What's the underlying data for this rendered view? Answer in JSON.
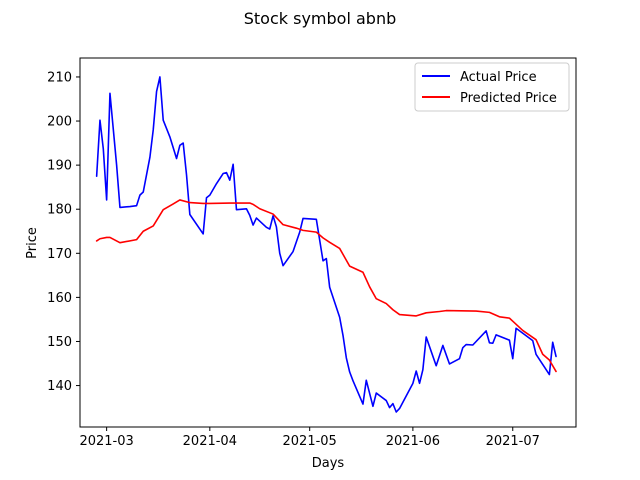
{
  "chart_data": {
    "type": "line",
    "title": "Stock symbol abnb",
    "xlabel": "Days",
    "ylabel": "Price",
    "xlim": [
      "2021-02-21",
      "2021-07-20"
    ],
    "ylim": [
      130.6,
      214.3
    ],
    "x_ticks": [
      "2021-03",
      "2021-04",
      "2021-05",
      "2021-06",
      "2021-07"
    ],
    "y_ticks": [
      140,
      150,
      160,
      170,
      180,
      190,
      200,
      210
    ],
    "grid": false,
    "legend_position": "top-right",
    "series": [
      {
        "name": "Actual Price",
        "color": "#0000ff",
        "points": [
          [
            "2021-02-26",
            187.5
          ],
          [
            "2021-02-27",
            200.2
          ],
          [
            "2021-02-28",
            193.7
          ],
          [
            "2021-03-01",
            182.1
          ],
          [
            "2021-03-02",
            206.3
          ],
          [
            "2021-03-04",
            190.0
          ],
          [
            "2021-03-05",
            180.4
          ],
          [
            "2021-03-08",
            180.6
          ],
          [
            "2021-03-10",
            180.8
          ],
          [
            "2021-03-11",
            183.2
          ],
          [
            "2021-03-12",
            183.9
          ],
          [
            "2021-03-14",
            191.8
          ],
          [
            "2021-03-15",
            198.0
          ],
          [
            "2021-03-16",
            206.7
          ],
          [
            "2021-03-17",
            210.0
          ],
          [
            "2021-03-18",
            200.2
          ],
          [
            "2021-03-20",
            196.4
          ],
          [
            "2021-03-22",
            191.5
          ],
          [
            "2021-03-23",
            194.5
          ],
          [
            "2021-03-24",
            195.0
          ],
          [
            "2021-03-25",
            187.8
          ],
          [
            "2021-03-26",
            178.8
          ],
          [
            "2021-03-30",
            174.4
          ],
          [
            "2021-03-31",
            182.6
          ],
          [
            "2021-04-01",
            183.2
          ],
          [
            "2021-04-03",
            185.8
          ],
          [
            "2021-04-05",
            188.1
          ],
          [
            "2021-04-06",
            188.3
          ],
          [
            "2021-04-07",
            186.6
          ],
          [
            "2021-04-08",
            190.2
          ],
          [
            "2021-04-09",
            179.9
          ],
          [
            "2021-04-12",
            180.1
          ],
          [
            "2021-04-13",
            178.6
          ],
          [
            "2021-04-14",
            176.4
          ],
          [
            "2021-04-15",
            178.0
          ],
          [
            "2021-04-18",
            175.9
          ],
          [
            "2021-04-19",
            175.5
          ],
          [
            "2021-04-20",
            178.5
          ],
          [
            "2021-04-21",
            176.0
          ],
          [
            "2021-04-22",
            170.0
          ],
          [
            "2021-04-23",
            167.2
          ],
          [
            "2021-04-26",
            170.4
          ],
          [
            "2021-04-28",
            174.8
          ],
          [
            "2021-04-29",
            177.9
          ],
          [
            "2021-05-03",
            177.7
          ],
          [
            "2021-05-05",
            168.3
          ],
          [
            "2021-05-06",
            168.8
          ],
          [
            "2021-05-07",
            162.3
          ],
          [
            "2021-05-10",
            155.5
          ],
          [
            "2021-05-11",
            151.4
          ],
          [
            "2021-05-12",
            146.3
          ],
          [
            "2021-05-13",
            143.1
          ],
          [
            "2021-05-14",
            141.1
          ],
          [
            "2021-05-17",
            135.8
          ],
          [
            "2021-05-18",
            141.2
          ],
          [
            "2021-05-20",
            135.3
          ],
          [
            "2021-05-21",
            138.3
          ],
          [
            "2021-05-24",
            136.6
          ],
          [
            "2021-05-25",
            135.0
          ],
          [
            "2021-05-26",
            135.9
          ],
          [
            "2021-05-27",
            134.0
          ],
          [
            "2021-05-28",
            134.8
          ],
          [
            "2021-06-01",
            140.5
          ],
          [
            "2021-06-02",
            143.3
          ],
          [
            "2021-06-03",
            140.5
          ],
          [
            "2021-06-04",
            143.6
          ],
          [
            "2021-06-05",
            151.0
          ],
          [
            "2021-06-08",
            144.5
          ],
          [
            "2021-06-10",
            149.1
          ],
          [
            "2021-06-12",
            144.9
          ],
          [
            "2021-06-15",
            146.1
          ],
          [
            "2021-06-16",
            148.6
          ],
          [
            "2021-06-17",
            149.3
          ],
          [
            "2021-06-19",
            149.2
          ],
          [
            "2021-06-23",
            152.4
          ],
          [
            "2021-06-24",
            149.7
          ],
          [
            "2021-06-25",
            149.6
          ],
          [
            "2021-06-26",
            151.5
          ],
          [
            "2021-06-30",
            150.3
          ],
          [
            "2021-07-01",
            146.1
          ],
          [
            "2021-07-02",
            153.0
          ],
          [
            "2021-07-07",
            150.2
          ],
          [
            "2021-07-08",
            147.1
          ],
          [
            "2021-07-12",
            142.5
          ],
          [
            "2021-07-13",
            149.8
          ],
          [
            "2021-07-14",
            146.6
          ]
        ]
      },
      {
        "name": "Predicted Price",
        "color": "#ff0000",
        "points": [
          [
            "2021-02-26",
            172.8
          ],
          [
            "2021-02-27",
            173.3
          ],
          [
            "2021-03-01",
            173.6
          ],
          [
            "2021-03-02",
            173.6
          ],
          [
            "2021-03-05",
            172.4
          ],
          [
            "2021-03-10",
            173.1
          ],
          [
            "2021-03-12",
            175.0
          ],
          [
            "2021-03-15",
            176.2
          ],
          [
            "2021-03-18",
            179.9
          ],
          [
            "2021-03-21",
            181.2
          ],
          [
            "2021-03-23",
            182.1
          ],
          [
            "2021-03-26",
            181.5
          ],
          [
            "2021-03-30",
            181.3
          ],
          [
            "2021-04-01",
            181.3
          ],
          [
            "2021-04-07",
            181.4
          ],
          [
            "2021-04-13",
            181.4
          ],
          [
            "2021-04-14",
            181.1
          ],
          [
            "2021-04-16",
            180.1
          ],
          [
            "2021-04-20",
            178.9
          ],
          [
            "2021-04-23",
            176.5
          ],
          [
            "2021-04-27",
            175.7
          ],
          [
            "2021-04-29",
            175.2
          ],
          [
            "2021-05-03",
            174.8
          ],
          [
            "2021-05-05",
            173.5
          ],
          [
            "2021-05-07",
            172.5
          ],
          [
            "2021-05-10",
            171.1
          ],
          [
            "2021-05-13",
            167.1
          ],
          [
            "2021-05-17",
            165.7
          ],
          [
            "2021-05-19",
            162.4
          ],
          [
            "2021-05-21",
            159.7
          ],
          [
            "2021-05-24",
            158.6
          ],
          [
            "2021-05-26",
            157.2
          ],
          [
            "2021-05-28",
            156.1
          ],
          [
            "2021-06-02",
            155.8
          ],
          [
            "2021-06-05",
            156.5
          ],
          [
            "2021-06-09",
            156.8
          ],
          [
            "2021-06-11",
            157.0
          ],
          [
            "2021-06-20",
            156.9
          ],
          [
            "2021-06-24",
            156.6
          ],
          [
            "2021-06-27",
            155.6
          ],
          [
            "2021-06-30",
            155.3
          ],
          [
            "2021-07-01",
            154.6
          ],
          [
            "2021-07-04",
            152.5
          ],
          [
            "2021-07-08",
            150.4
          ],
          [
            "2021-07-10",
            147.1
          ],
          [
            "2021-07-12",
            145.8
          ],
          [
            "2021-07-14",
            143.2
          ]
        ]
      }
    ]
  }
}
